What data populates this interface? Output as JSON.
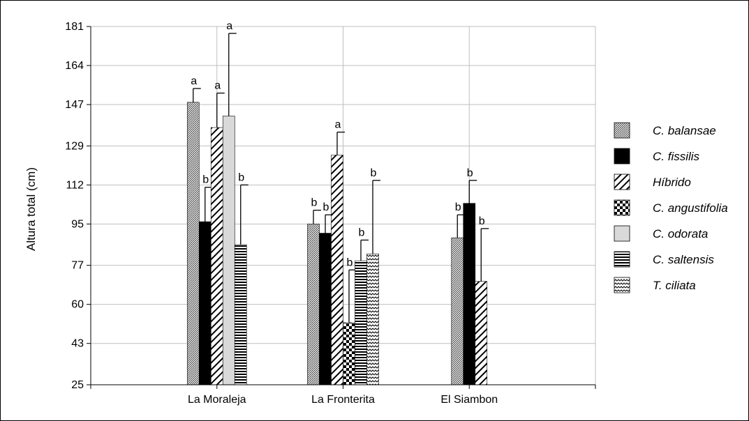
{
  "chart_data": {
    "type": "bar",
    "ylabel": "Altura total (cm)",
    "xlabel": "",
    "ylim": [
      25,
      181
    ],
    "yticks": [
      25,
      43,
      60,
      77,
      95,
      112,
      129,
      147,
      164,
      181
    ],
    "grid": true,
    "legend_position": "right",
    "categories": [
      "La Moraleja",
      "La Fronterita",
      "El Siambon"
    ],
    "series": [
      {
        "name": "C. balansae",
        "pattern": "dots",
        "values": [
          148,
          95,
          89
        ],
        "errors": [
          6,
          6,
          10
        ],
        "labels": [
          "a",
          "b",
          "b"
        ]
      },
      {
        "name": "C. fissilis",
        "pattern": "solid",
        "values": [
          96,
          91,
          104
        ],
        "errors": [
          15,
          8,
          10
        ],
        "labels": [
          "b",
          "b",
          "b"
        ]
      },
      {
        "name": "Híbrido",
        "pattern": "diagonal",
        "values": [
          137,
          125,
          70
        ],
        "errors": [
          15,
          10,
          23
        ],
        "labels": [
          "a",
          "a",
          "b"
        ]
      },
      {
        "name": "C. angustifolia",
        "pattern": "checker",
        "values": [
          null,
          52,
          null
        ],
        "errors": [
          null,
          23,
          null
        ],
        "labels": [
          "",
          "b",
          ""
        ]
      },
      {
        "name": "C. odorata",
        "pattern": "light",
        "values": [
          142,
          null,
          null
        ],
        "errors": [
          36,
          null,
          null
        ],
        "labels": [
          "a",
          "",
          ""
        ]
      },
      {
        "name": "C. saltensis",
        "pattern": "horizontal",
        "values": [
          86,
          79,
          null
        ],
        "errors": [
          26,
          9,
          null
        ],
        "labels": [
          "b",
          "b",
          ""
        ]
      },
      {
        "name": "T. ciliata",
        "pattern": "wave",
        "values": [
          null,
          82,
          null
        ],
        "errors": [
          null,
          32,
          null
        ],
        "labels": [
          "",
          "b",
          ""
        ]
      }
    ]
  },
  "colors": {
    "axis": "#000000",
    "grid": "#bfbfbf",
    "bar_outline": "#000000"
  }
}
